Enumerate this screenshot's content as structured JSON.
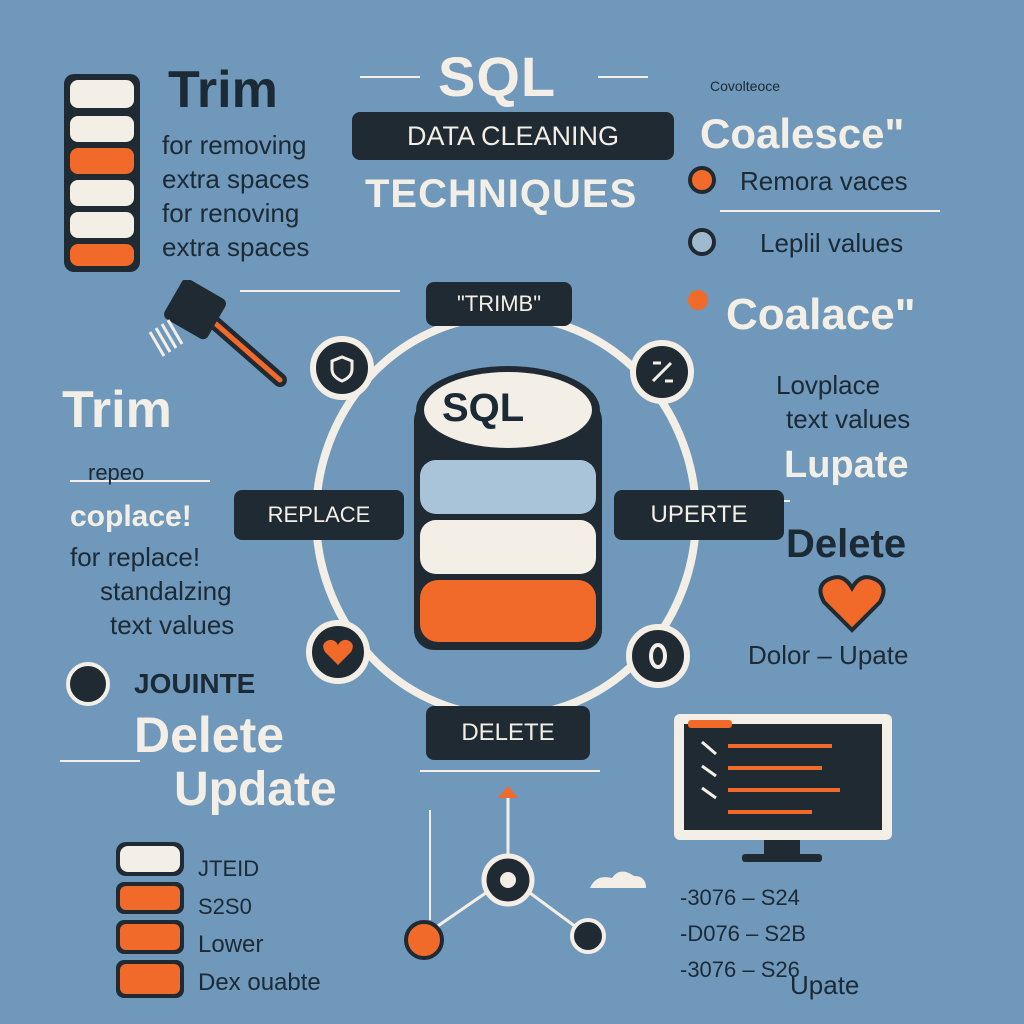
{
  "title": {
    "sql": "SQL",
    "line1": "DATA CLEANING",
    "line2": "TECHNIQUES"
  },
  "left_top": {
    "trim": "Trim",
    "lines": [
      "for removing",
      "extra spaces",
      "for renoving",
      "extra spaces"
    ]
  },
  "right_top": {
    "coalesce": "Coalesce\"",
    "items": [
      "Remora vaces",
      "Leplil values"
    ]
  },
  "ring": {
    "top": "\"TRIMB\"",
    "left": "REPLACE",
    "right": "UPERTE",
    "bottom": "DELETE",
    "center": "SQL"
  },
  "left_mid": {
    "trim": "Trim",
    "repeo": "repeo",
    "coplace": "coplace!",
    "lines": [
      "for replace!",
      "standalzing",
      "text values"
    ],
    "jouinte": "JOUINTE",
    "delete": "Delete",
    "update": "Update"
  },
  "right_mid": {
    "coalace": "Coalace\"",
    "lines": [
      "Lovplace",
      "text values"
    ],
    "update": "Lupate",
    "delete": "Delete",
    "dolor": "Dolor – Upate"
  },
  "bottom_left": {
    "items": [
      "JTEID",
      "S2S0",
      "Lower",
      "Dex ouabte"
    ]
  },
  "bottom_right": {
    "items": [
      "-3076 – S24",
      "-D076 – S2B",
      "-3076 – S26"
    ],
    "update": "Upate"
  },
  "header_right": "Covolteoce",
  "colors": {
    "background": "#6f98ba",
    "accent": "#f26a2a",
    "dark": "#1f2a33",
    "cream": "#f3efe6"
  }
}
